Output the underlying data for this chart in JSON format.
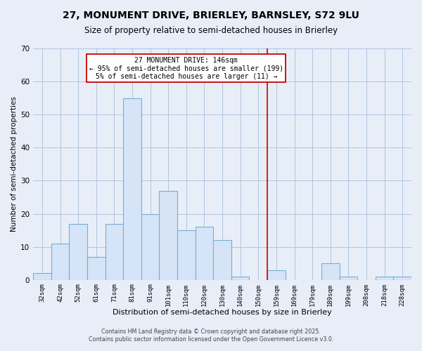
{
  "title": "27, MONUMENT DRIVE, BRIERLEY, BARNSLEY, S72 9LU",
  "subtitle": "Size of property relative to semi-detached houses in Brierley",
  "xlabel": "Distribution of semi-detached houses by size in Brierley",
  "ylabel": "Number of semi-detached properties",
  "bar_labels": [
    "32sqm",
    "42sqm",
    "52sqm",
    "61sqm",
    "71sqm",
    "81sqm",
    "91sqm",
    "101sqm",
    "110sqm",
    "120sqm",
    "130sqm",
    "140sqm",
    "150sqm",
    "159sqm",
    "169sqm",
    "179sqm",
    "189sqm",
    "199sqm",
    "208sqm",
    "218sqm",
    "228sqm"
  ],
  "bar_values": [
    2,
    11,
    17,
    7,
    17,
    55,
    20,
    27,
    15,
    16,
    12,
    1,
    0,
    3,
    0,
    0,
    5,
    1,
    0,
    1,
    1
  ],
  "bar_color": "#d6e4f7",
  "bar_edge_color": "#7aadd4",
  "vline_color": "#cc0000",
  "annotation_line1": "27 MONUMENT DRIVE: 146sqm",
  "annotation_line2": "← 95% of semi-detached houses are smaller (199)",
  "annotation_line3": "5% of semi-detached houses are larger (11) →",
  "annotation_box_color": "#ffffff",
  "annotation_box_edge": "#cc0000",
  "ylim": [
    0,
    70
  ],
  "yticks": [
    0,
    10,
    20,
    30,
    40,
    50,
    60,
    70
  ],
  "footer1": "Contains HM Land Registry data © Crown copyright and database right 2025.",
  "footer2": "Contains public sector information licensed under the Open Government Licence v3.0.",
  "bg_color": "#e8eef8",
  "plot_bg_color": "#e8eef8",
  "grid_color": "#b0c4de",
  "title_fontsize": 10,
  "subtitle_fontsize": 8.5,
  "vline_x": 12.5
}
